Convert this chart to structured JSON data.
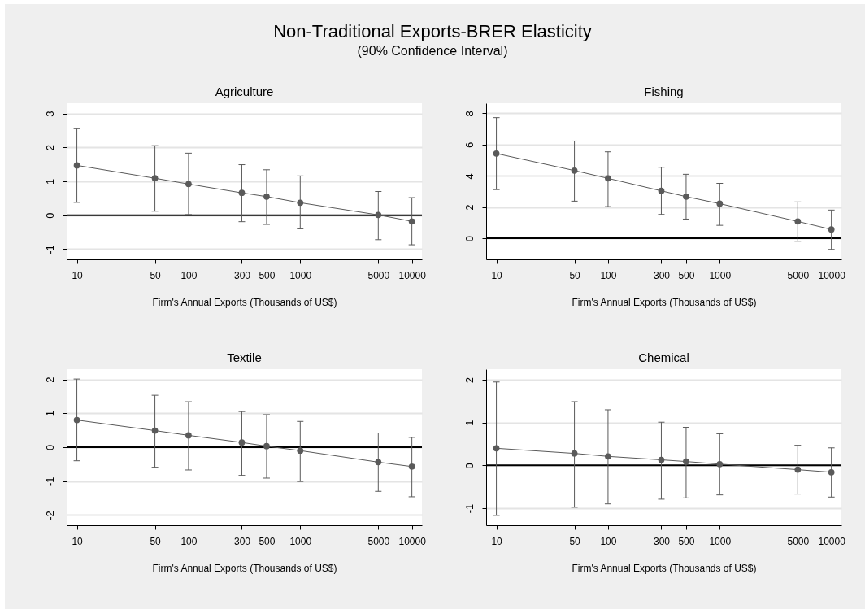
{
  "chart_data": [
    {
      "type": "other",
      "title": "Non-Traditional Exports-BRER Elasticity",
      "subtitle": "(90% Confidence Interval)"
    },
    {
      "type": "line",
      "title": "Agriculture",
      "xlabel": "Firm's Annual Exports (Thousands of US$)",
      "x": [
        10,
        50,
        100,
        300,
        500,
        1000,
        5000,
        10000
      ],
      "values": [
        1.47,
        1.09,
        0.92,
        0.66,
        0.55,
        0.37,
        0.01,
        -0.18
      ],
      "errors": [
        [
          0.38,
          2.55
        ],
        [
          0.12,
          2.05
        ],
        [
          0.02,
          1.83
        ],
        [
          -0.19,
          1.49
        ],
        [
          -0.27,
          1.34
        ],
        [
          -0.4,
          1.16
        ],
        [
          -0.72,
          0.7
        ],
        [
          -0.87,
          0.52
        ]
      ],
      "color": "#5a5a5a",
      "marker": "circle",
      "line_style": "solid",
      "log": "x",
      "xlim": [
        8.1,
        12300
      ],
      "xticks": [
        10,
        50,
        100,
        300,
        500,
        1000,
        5000,
        10000
      ],
      "ylim": [
        -1.3,
        3.3
      ],
      "yticks": [
        -1,
        0,
        1,
        2,
        3
      ],
      "grid": "y",
      "ref_lines": [
        {
          "axis": "y",
          "value": 0,
          "color": "#000000"
        }
      ]
    },
    {
      "type": "line",
      "title": "Fishing",
      "xlabel": "Firm's Annual Exports (Thousands of US$)",
      "x": [
        10,
        50,
        100,
        300,
        500,
        1000,
        5000,
        10000
      ],
      "values": [
        5.43,
        4.34,
        3.84,
        3.04,
        2.67,
        2.22,
        1.08,
        0.57
      ],
      "errors": [
        [
          3.12,
          7.73
        ],
        [
          2.38,
          6.23
        ],
        [
          2.03,
          5.54
        ],
        [
          1.53,
          4.55
        ],
        [
          1.23,
          4.1
        ],
        [
          0.83,
          3.52
        ],
        [
          -0.19,
          2.33
        ],
        [
          -0.71,
          1.81
        ]
      ],
      "color": "#5a5a5a",
      "marker": "circle",
      "line_style": "solid",
      "log": "x",
      "xlim": [
        8.1,
        12300
      ],
      "xticks": [
        10,
        50,
        100,
        300,
        500,
        1000,
        5000,
        10000
      ],
      "ylim": [
        -1.35,
        8.65
      ],
      "yticks": [
        0,
        2,
        4,
        6,
        8
      ],
      "grid": "y",
      "ref_lines": [
        {
          "axis": "y",
          "value": 0,
          "color": "#000000"
        }
      ]
    },
    {
      "type": "line",
      "title": "Textile",
      "xlabel": "Firm's Annual Exports (Thousands of US$)",
      "x": [
        10,
        50,
        100,
        300,
        500,
        1000,
        5000,
        10000
      ],
      "values": [
        0.8,
        0.49,
        0.35,
        0.14,
        0.03,
        -0.1,
        -0.44,
        -0.57
      ],
      "errors": [
        [
          -0.4,
          2.01
        ],
        [
          -0.59,
          1.53
        ],
        [
          -0.67,
          1.34
        ],
        [
          -0.83,
          1.05
        ],
        [
          -0.91,
          0.96
        ],
        [
          -1.01,
          0.76
        ],
        [
          -1.3,
          0.42
        ],
        [
          -1.46,
          0.29
        ]
      ],
      "color": "#5a5a5a",
      "marker": "circle",
      "line_style": "solid",
      "log": "x",
      "xlim": [
        8.1,
        12300
      ],
      "xticks": [
        10,
        50,
        100,
        300,
        500,
        1000,
        5000,
        10000
      ],
      "ylim": [
        -2.3,
        2.3
      ],
      "yticks": [
        -2,
        -1,
        0,
        1,
        2
      ],
      "grid": "y",
      "ref_lines": [
        {
          "axis": "y",
          "value": 0,
          "color": "#000000"
        }
      ]
    },
    {
      "type": "line",
      "title": "Chemical",
      "xlabel": "Firm's Annual Exports (Thousands of US$)",
      "x": [
        10,
        50,
        100,
        300,
        500,
        1000,
        5000,
        10000
      ],
      "values": [
        0.4,
        0.28,
        0.21,
        0.13,
        0.09,
        0.03,
        -0.1,
        -0.16
      ],
      "errors": [
        [
          -1.17,
          1.95
        ],
        [
          -0.98,
          1.49
        ],
        [
          -0.9,
          1.3
        ],
        [
          -0.79,
          1.01
        ],
        [
          -0.76,
          0.89
        ],
        [
          -0.69,
          0.74
        ],
        [
          -0.67,
          0.47
        ],
        [
          -0.74,
          0.41
        ]
      ],
      "color": "#5a5a5a",
      "marker": "circle",
      "line_style": "solid",
      "log": "x",
      "xlim": [
        8.1,
        12300
      ],
      "xticks": [
        10,
        50,
        100,
        300,
        500,
        1000,
        5000,
        10000
      ],
      "ylim": [
        -1.4,
        2.25
      ],
      "yticks": [
        -1,
        0,
        1,
        2
      ],
      "grid": "y",
      "ref_lines": [
        {
          "axis": "y",
          "value": 0,
          "color": "#000000"
        }
      ]
    }
  ]
}
